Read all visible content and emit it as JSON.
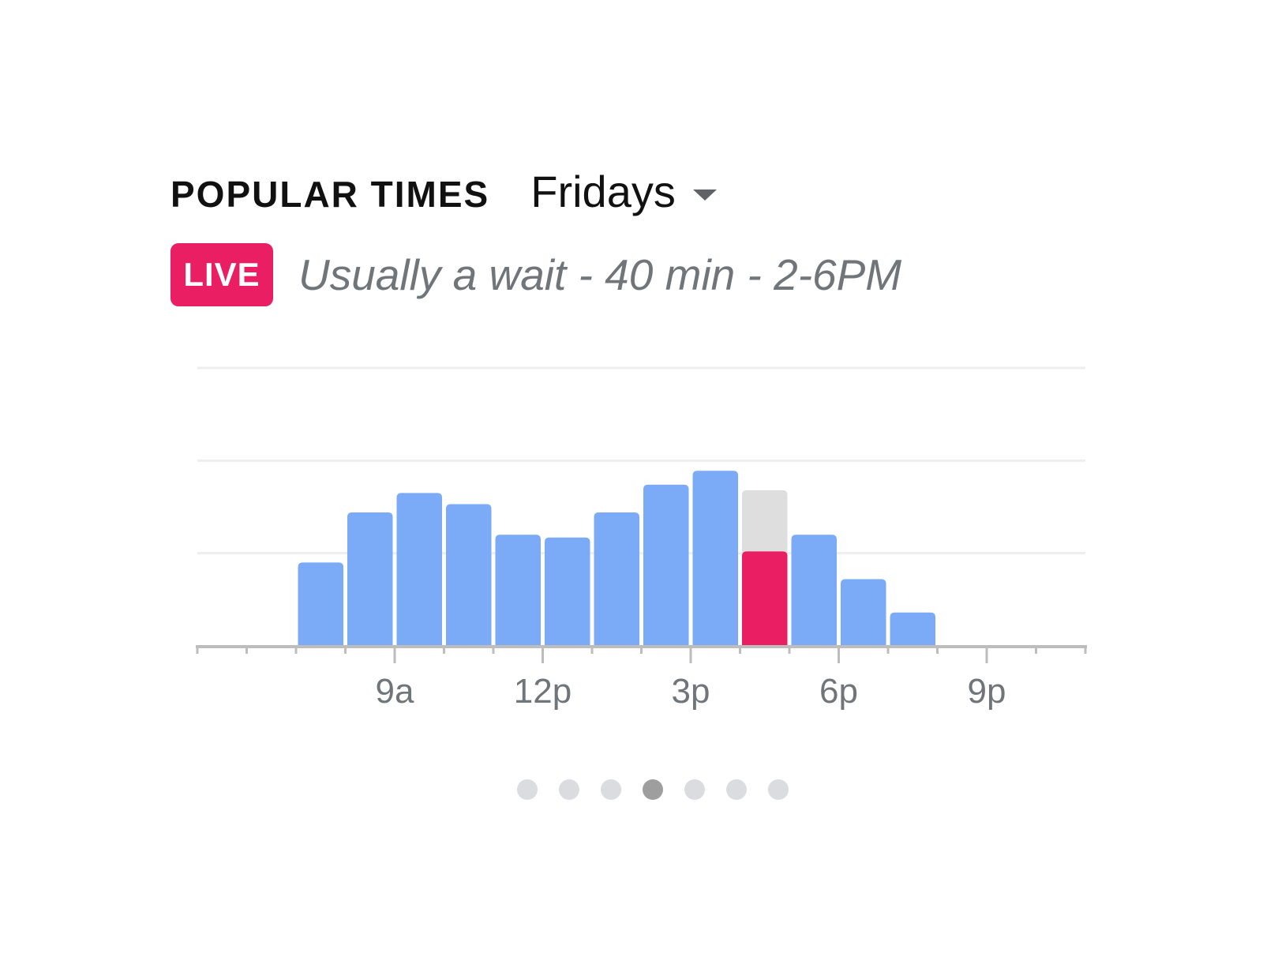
{
  "header": {
    "title": "POPULAR TIMES",
    "day_selected": "Fridays"
  },
  "live": {
    "badge": "LIVE",
    "status_text": "Usually a wait - 40 min - 2-6PM"
  },
  "colors": {
    "bar": "#7baaf7",
    "live_bar": "#e91e63",
    "usual_bar": "#dedede",
    "gridline": "#eeeeee",
    "axis": "#bdbdbd",
    "dot": "#dadce0",
    "dot_active": "#9e9e9e"
  },
  "chart_data": {
    "type": "bar",
    "x_tick_labels": [
      "9a",
      "12p",
      "3p",
      "6p",
      "9p"
    ],
    "x_tick_hours": [
      9,
      12,
      15,
      18,
      21
    ],
    "x_range_hours": [
      5,
      23
    ],
    "ylim": [
      0,
      100
    ],
    "grid": true,
    "series": [
      {
        "hours": [
          7,
          8,
          9,
          10,
          11,
          12,
          13,
          14,
          15,
          16,
          17,
          18,
          19
        ],
        "values": [
          30,
          48,
          55,
          51,
          40,
          39,
          48,
          58,
          63,
          56,
          40,
          24,
          12
        ]
      }
    ],
    "live": {
      "hour": 16,
      "value": 34
    }
  },
  "pager": {
    "count": 7,
    "active_index": 3
  }
}
